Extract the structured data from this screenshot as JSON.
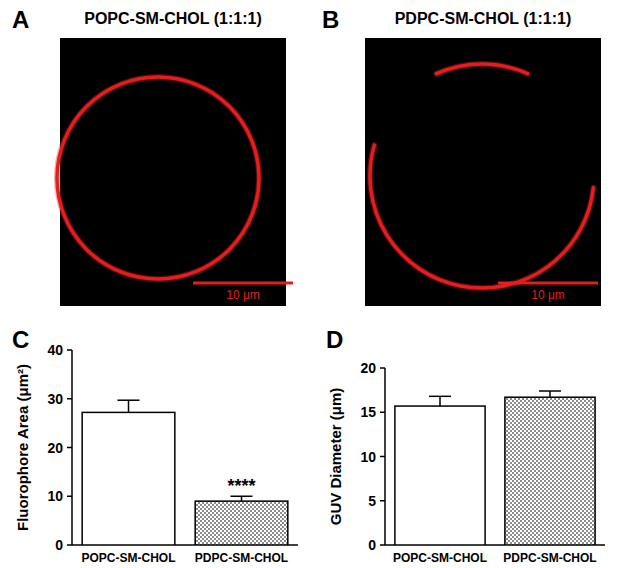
{
  "images": [
    {
      "panel": "A",
      "title": "POPC-SM-CHOL (1:1:1)",
      "scale_bar": "10 μm",
      "color": "#e41e1e"
    },
    {
      "panel": "B",
      "title": "PDPC-SM-CHOL (1:1:1)",
      "scale_bar": "10 μm",
      "color": "#e41e1e"
    }
  ],
  "chart_data": [
    {
      "panel": "C",
      "type": "bar",
      "y_label": "Fluorophore Area (μm²)",
      "categories": [
        "POPC-SM-CHOL",
        "PDPC-SM-CHOL"
      ],
      "values": [
        27.2,
        9
      ],
      "errors": [
        2.5,
        1.0
      ],
      "colors": [
        "#ffffff",
        "#8c8c8c"
      ],
      "ylim": [
        0,
        40
      ],
      "yticks": [
        0,
        10,
        20,
        30,
        40
      ],
      "annotations": [
        {
          "text": "****",
          "category": "PDPC-SM-CHOL"
        }
      ]
    },
    {
      "panel": "D",
      "type": "bar",
      "y_label": "GUV Diameter (μm)",
      "categories": [
        "POPC-SM-CHOL",
        "PDPC-SM-CHOL"
      ],
      "values": [
        15.7,
        16.7
      ],
      "errors": [
        1.1,
        0.7
      ],
      "colors": [
        "#ffffff",
        "#8c8c8c"
      ],
      "ylim": [
        0,
        20
      ],
      "yticks": [
        0,
        5,
        10,
        15,
        20
      ]
    }
  ]
}
